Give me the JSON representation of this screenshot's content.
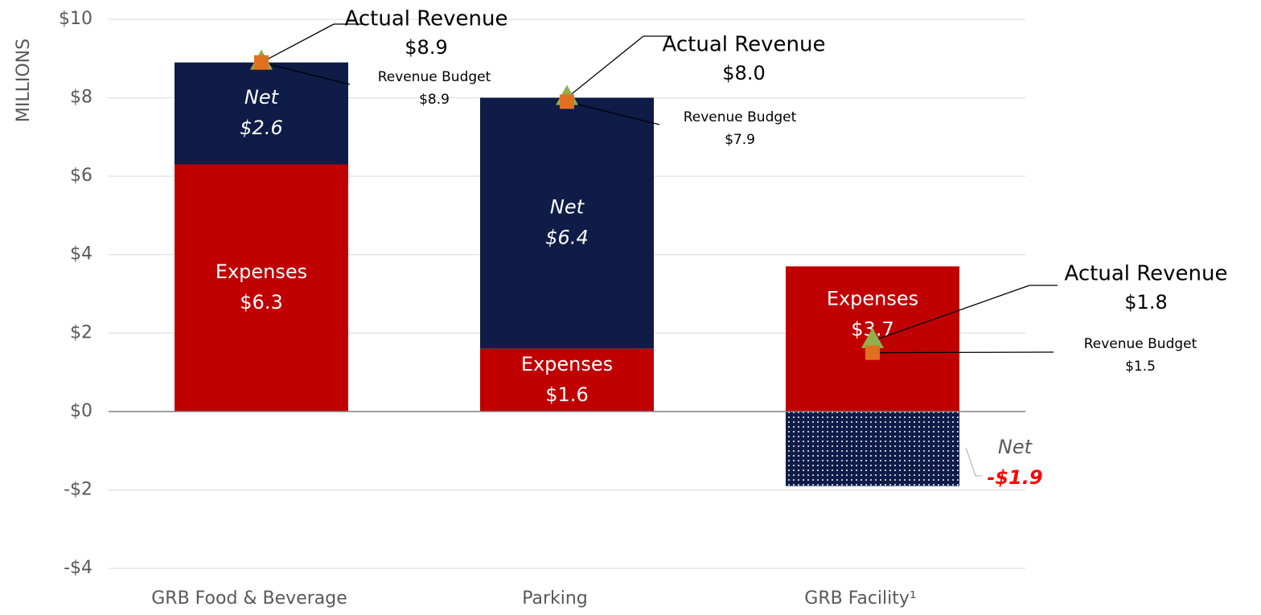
{
  "chart_data": {
    "type": "bar",
    "stacked": true,
    "y_axis_label": "MILLIONS",
    "categories": [
      "GRB Food & Beverage",
      "Parking",
      "GRB Facility¹"
    ],
    "series": [
      {
        "name": "Expenses",
        "color": "#c00000",
        "values": [
          6.3,
          1.6,
          3.7
        ],
        "value_labels": [
          "$6.3",
          "$1.6",
          "$3.7"
        ]
      },
      {
        "name": "Net",
        "color": "#0f1c47",
        "values": [
          2.6,
          6.4,
          -1.9
        ],
        "value_labels": [
          "$2.6",
          "$6.4",
          "-$1.9"
        ]
      },
      {
        "name": "Actual Revenue",
        "type": "marker",
        "marker": "triangle",
        "color": "#8fb04a",
        "values": [
          8.9,
          8.0,
          1.8
        ],
        "value_labels": [
          "$8.9",
          "$8.0",
          "$1.8"
        ]
      },
      {
        "name": "Revenue Budget",
        "type": "marker",
        "marker": "square",
        "color": "#e07020",
        "values": [
          8.9,
          7.9,
          1.5
        ],
        "value_labels": [
          "$8.9",
          "$7.9",
          "$1.5"
        ]
      }
    ],
    "ylim": [
      -4,
      10
    ],
    "yticks": [
      {
        "value": -4,
        "label": "-$4"
      },
      {
        "value": -2,
        "label": "-$2"
      },
      {
        "value": 0,
        "label": "$0"
      },
      {
        "value": 2,
        "label": "$2"
      },
      {
        "value": 4,
        "label": "$4"
      },
      {
        "value": 6,
        "label": "$6"
      },
      {
        "value": 8,
        "label": "$8"
      },
      {
        "value": 10,
        "label": "$10"
      }
    ],
    "grid": true
  }
}
